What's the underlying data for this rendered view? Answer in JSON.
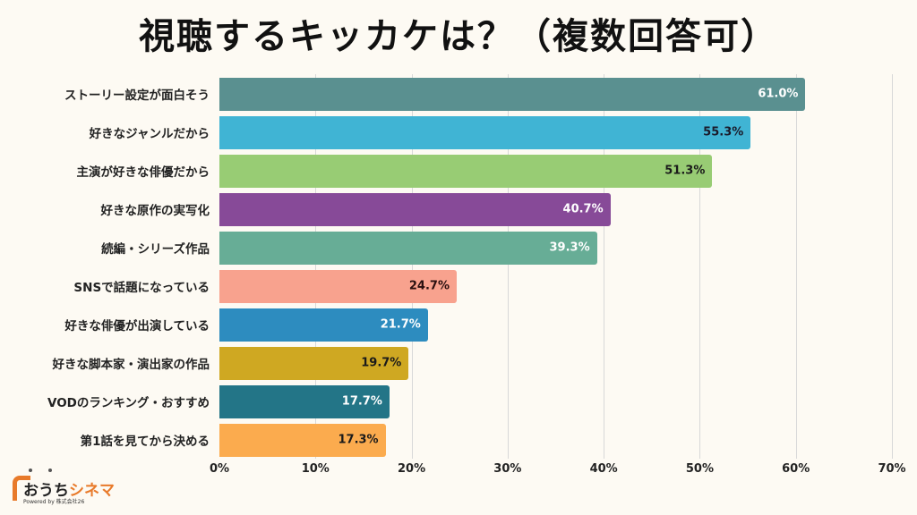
{
  "chart_data": {
    "type": "bar",
    "orientation": "horizontal",
    "title": "視聴するキッカケは？（複数回答可）",
    "categories": [
      "ストーリー設定が面白そう",
      "好きなジャンルだから",
      "主演が好きな俳優だから",
      "好きな原作の実写化",
      "続編・シリーズ作品",
      "SNSで話題になっている",
      "好きな俳優が出演している",
      "好きな脚本家・演出家の作品",
      "VODのランキング・おすすめ",
      "第1話を見てから決める"
    ],
    "values": [
      61.0,
      55.3,
      51.3,
      40.7,
      39.3,
      24.7,
      21.7,
      19.7,
      17.7,
      17.3
    ],
    "value_labels": [
      "61.0%",
      "55.3%",
      "51.3%",
      "40.7%",
      "39.3%",
      "24.7%",
      "21.7%",
      "19.7%",
      "17.7%",
      "17.3%"
    ],
    "colors": [
      "#5a9090",
      "#40b4d4",
      "#98cc74",
      "#874a98",
      "#67ad96",
      "#f8a28e",
      "#2d8cbf",
      "#cfa822",
      "#237587",
      "#fbab4e"
    ],
    "label_colors": [
      "#ffffff",
      "#1a1a2a",
      "#1a1a1a",
      "#ffffff",
      "#ffffff",
      "#2a1010",
      "#ffffff",
      "#1a1a1a",
      "#ffffff",
      "#1a1a1a"
    ],
    "xlim": [
      0,
      70
    ],
    "xticks": [
      "0%",
      "10%",
      "20%",
      "30%",
      "40%",
      "50%",
      "60%",
      "70%"
    ],
    "grid": true,
    "unit": "%"
  },
  "logo": {
    "main_a": "おうち",
    "main_b": "シネマ",
    "sub": "Powered by 株式会社26"
  }
}
